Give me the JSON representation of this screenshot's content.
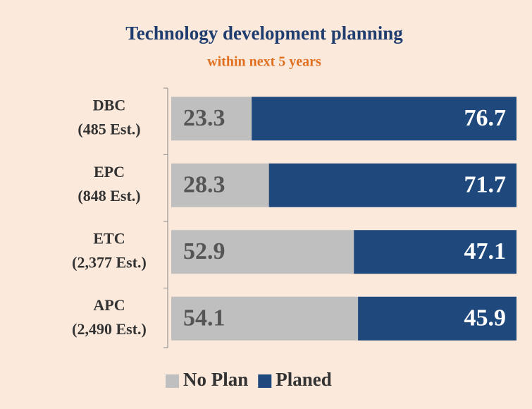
{
  "chart_data": {
    "type": "stacked_bar_horizontal",
    "title": "Technology development planning",
    "subtitle": "within next 5 years",
    "categories": [
      [
        "DBC",
        "(485 Est.)"
      ],
      [
        "EPC",
        "(848 Est.)"
      ],
      [
        "ETC",
        "(2,377 Est.)"
      ],
      [
        "APC",
        "(2,490 Est.)"
      ]
    ],
    "series": [
      {
        "name": "No Plan",
        "color": "#bfbfbf",
        "values": [
          23.3,
          28.3,
          52.9,
          54.1
        ]
      },
      {
        "name": "Planed",
        "color": "#1f497d",
        "values": [
          76.7,
          71.7,
          47.1,
          45.9
        ]
      }
    ],
    "xlim": [
      0,
      100
    ],
    "legend": "bottom"
  }
}
